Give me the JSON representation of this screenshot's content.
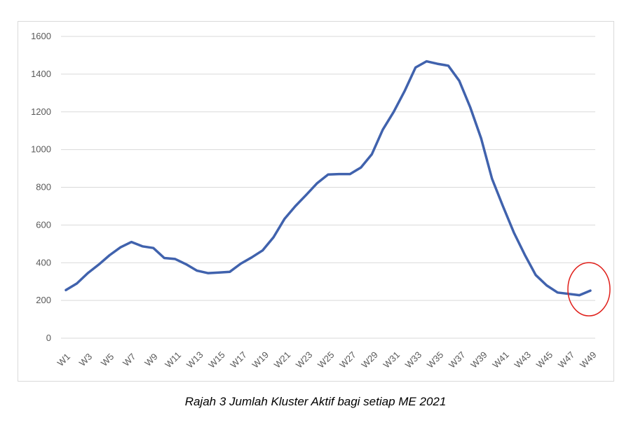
{
  "caption": "Rajah 3 Jumlah Kluster Aktif bagi setiap ME 2021",
  "chart_data": {
    "type": "line",
    "title": "",
    "xlabel": "",
    "ylabel": "",
    "ylim": [
      0,
      1600
    ],
    "yticks": [
      0,
      200,
      400,
      600,
      800,
      1000,
      1200,
      1400,
      1600
    ],
    "grid": true,
    "categories": [
      "W1",
      "W2",
      "W3",
      "W4",
      "W5",
      "W6",
      "W7",
      "W8",
      "W9",
      "W10",
      "W11",
      "W12",
      "W13",
      "W14",
      "W15",
      "W16",
      "W17",
      "W18",
      "W19",
      "W20",
      "W21",
      "W22",
      "W23",
      "W24",
      "W25",
      "W26",
      "W27",
      "W28",
      "W29",
      "W30",
      "W31",
      "W32",
      "W33",
      "W34",
      "W35",
      "W36",
      "W37",
      "W38",
      "W39",
      "W40",
      "W41",
      "W42",
      "W43",
      "W44",
      "W45",
      "W46",
      "W47",
      "W48",
      "W49"
    ],
    "xtick_labels": [
      "W1",
      "W3",
      "W5",
      "W7",
      "W9",
      "W11",
      "W13",
      "W15",
      "W17",
      "W19",
      "W21",
      "W23",
      "W25",
      "W27",
      "W29",
      "W31",
      "W33",
      "W35",
      "W37",
      "W39",
      "W41",
      "W43",
      "W45",
      "W47",
      "W49"
    ],
    "series": [
      {
        "name": "Jumlah Kluster Aktif",
        "color": "#4062ad",
        "values": [
          255,
          290,
          345,
          390,
          440,
          482,
          510,
          487,
          478,
          425,
          420,
          392,
          358,
          345,
          348,
          352,
          395,
          428,
          465,
          535,
          632,
          700,
          760,
          822,
          868,
          870,
          870,
          905,
          975,
          1105,
          1200,
          1310,
          1435,
          1468,
          1455,
          1445,
          1365,
          1225,
          1060,
          845,
          700,
          560,
          442,
          335,
          280,
          242,
          235,
          228,
          252
        ]
      }
    ],
    "annotation": {
      "type": "circle",
      "target": "W49",
      "color": "#e0201b"
    }
  }
}
